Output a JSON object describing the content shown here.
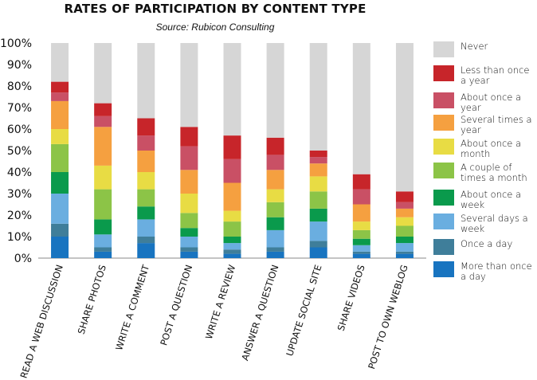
{
  "chart_data": {
    "type": "bar",
    "stacked": true,
    "title": "RATES OF PARTICIPATION BY CONTENT TYPE",
    "subtitle": "Source: Rubicon Consulting",
    "ylim": [
      0,
      100
    ],
    "y_ticks": [
      "0%",
      "10%",
      "20%",
      "30%",
      "40%",
      "50%",
      "60%",
      "70%",
      "80%",
      "90%",
      "100%"
    ],
    "grid": false,
    "legend_position": "right",
    "categories": [
      "READ A WEB DISCUSSION",
      "SHARE PHOTOS",
      "WRITE A COMMENT",
      "POST A QUESTION",
      "WRITE A REVIEW",
      "ANSWER A QUESTION",
      "UPDATE SOCIAL SITE",
      "SHARE VIDEOS",
      "POST TO OWN WEBLOG"
    ],
    "series": [
      {
        "name": "More than once a day",
        "color": "#1874c0",
        "values": [
          10,
          3,
          7,
          3,
          2,
          3,
          5,
          2,
          2
        ]
      },
      {
        "name": "Once a day",
        "color": "#3f7e9a",
        "values": [
          6,
          2,
          3,
          2,
          2,
          2,
          3,
          1,
          1
        ]
      },
      {
        "name": "Several days a week",
        "color": "#6aaee0",
        "values": [
          14,
          6,
          8,
          5,
          3,
          8,
          9,
          3,
          4
        ]
      },
      {
        "name": "About once a week",
        "color": "#0a9a4c",
        "values": [
          10,
          7,
          6,
          4,
          3,
          6,
          6,
          3,
          3
        ]
      },
      {
        "name": "A couple of times a month",
        "color": "#8cc447",
        "values": [
          13,
          14,
          8,
          7,
          7,
          7,
          8,
          4,
          5
        ]
      },
      {
        "name": "About once a month",
        "color": "#e8dc44",
        "values": [
          7,
          11,
          8,
          9,
          5,
          6,
          7,
          4,
          4
        ]
      },
      {
        "name": "Several times a year",
        "color": "#f5a040",
        "values": [
          13,
          18,
          10,
          11,
          13,
          9,
          6,
          8,
          4
        ]
      },
      {
        "name": "About once a year",
        "color": "#c95065",
        "values": [
          4,
          5,
          7,
          11,
          11,
          7,
          3,
          7,
          3
        ]
      },
      {
        "name": "Less than once a year",
        "color": "#c7252a",
        "values": [
          5,
          6,
          8,
          9,
          11,
          8,
          3,
          7,
          5
        ]
      },
      {
        "name": "Never",
        "color": "#d6d6d6",
        "values": [
          18,
          28,
          35,
          39,
          43,
          44,
          50,
          61,
          69
        ]
      }
    ]
  },
  "legend": {
    "items": [
      {
        "name": "Never",
        "color": "#d6d6d6"
      },
      {
        "name": "Less than once a year",
        "color": "#c7252a"
      },
      {
        "name": "About once a year",
        "color": "#c95065"
      },
      {
        "name": "Several times a year",
        "color": "#f5a040"
      },
      {
        "name": "About once a month",
        "color": "#e8dc44"
      },
      {
        "name": "A couple of times a month",
        "color": "#8cc447"
      },
      {
        "name": "About once a week",
        "color": "#0a9a4c"
      },
      {
        "name": "Several days a week",
        "color": "#6aaee0"
      },
      {
        "name": "Once a day",
        "color": "#3f7e9a"
      },
      {
        "name": "More than once a day",
        "color": "#1874c0"
      }
    ]
  }
}
